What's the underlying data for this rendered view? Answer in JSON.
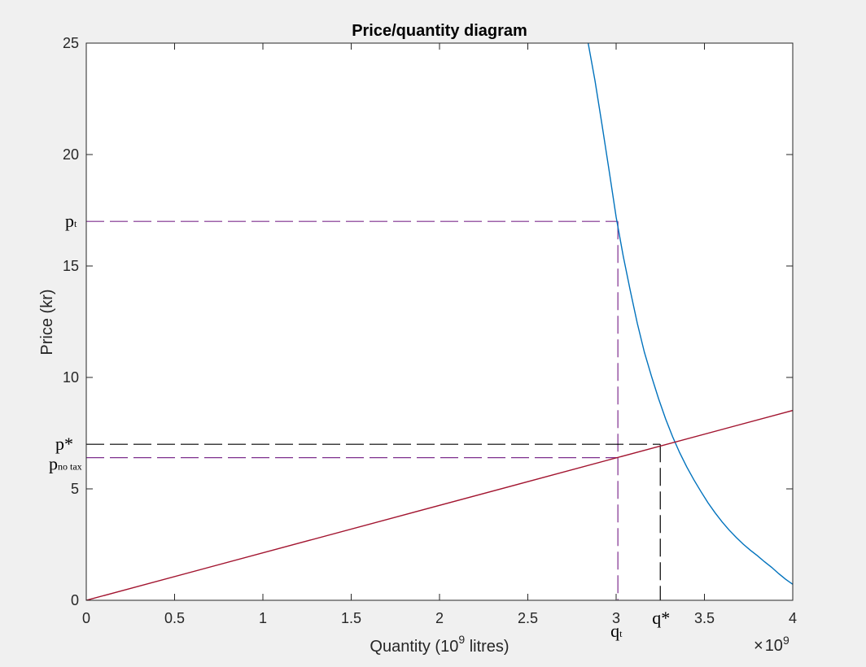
{
  "chart_data": {
    "type": "line",
    "title": "Price/quantity diagram",
    "xlabel": "Quantity (10",
    "xlabel_sup": "9",
    "xlabel_tail": " litres)",
    "ylabel": "Price (kr)",
    "x_exponent_times": "×",
    "x_exponent_base": "10",
    "x_exponent_power": "9",
    "xlim": [
      0,
      4
    ],
    "ylim": [
      0,
      25
    ],
    "xticks": [
      0,
      0.5,
      1,
      1.5,
      2,
      2.5,
      3,
      3.5,
      4
    ],
    "xtick_labels": [
      "0",
      "0.5",
      "1",
      "1.5",
      "2",
      "2.5",
      "3",
      "3.5",
      "4"
    ],
    "yticks": [
      0,
      5,
      10,
      15,
      20,
      25
    ],
    "ytick_labels": [
      "0",
      "5",
      "10",
      "15",
      "20",
      "25"
    ],
    "grid": false,
    "colors": {
      "demand": "#0072bd",
      "supply": "#a2142f",
      "tax_guides": "#7e2f8e",
      "eq_guides": "#000000",
      "axes_bg": "#ffffff",
      "figure_bg": "#f0f0f0"
    },
    "series": [
      {
        "role": "demand",
        "x": [
          2.84,
          2.88,
          2.92,
          2.96,
          3.0,
          3.04,
          3.08,
          3.12,
          3.16,
          3.2,
          3.24,
          3.28,
          3.32,
          3.36,
          3.4,
          3.44,
          3.48,
          3.52,
          3.56,
          3.6,
          3.64,
          3.68,
          3.72,
          3.76,
          3.8,
          3.84,
          3.88,
          3.92,
          3.96,
          4.0
        ],
        "y": [
          25.07,
          23.32,
          21.35,
          19.3,
          17.2,
          15.45,
          13.89,
          12.43,
          11.13,
          10.06,
          9.05,
          8.14,
          7.34,
          6.62,
          5.98,
          5.41,
          4.88,
          4.38,
          3.93,
          3.52,
          3.15,
          2.82,
          2.52,
          2.25,
          2.0,
          1.73,
          1.48,
          1.2,
          0.94,
          0.72
        ]
      },
      {
        "role": "supply",
        "x": [
          0,
          4
        ],
        "y": [
          0,
          8.52
        ]
      }
    ],
    "annotations": {
      "p_t": {
        "value": 17.0,
        "label": "p",
        "sub": "t"
      },
      "p_star": {
        "value": 7.0,
        "label": "p*"
      },
      "p_no_tax": {
        "value": 6.4,
        "label": "p",
        "sub": "no tax"
      },
      "q_t": {
        "value": 3.01,
        "label": "q",
        "sub": "t"
      },
      "q_star": {
        "value": 3.25,
        "label": "q*"
      }
    }
  }
}
